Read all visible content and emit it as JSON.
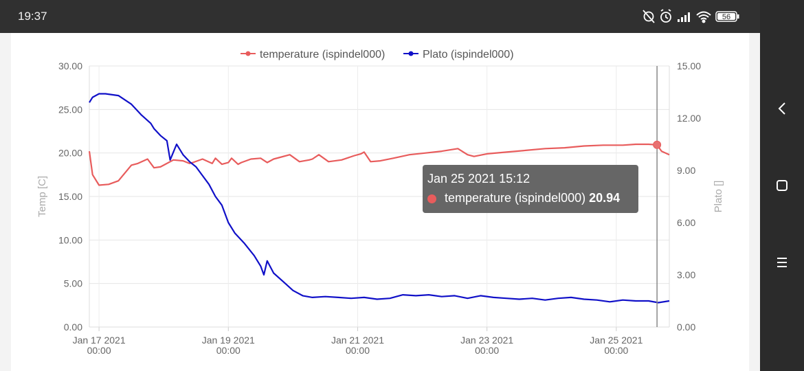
{
  "status_bar": {
    "time": "19:37",
    "battery_level": "56",
    "icons": [
      "alarm-off-icon",
      "alarm-clock-icon",
      "signal-icon",
      "wifi-icon",
      "battery-icon"
    ]
  },
  "nav_bar": {
    "icons": [
      "back-chevron-icon",
      "home-square-icon",
      "menu-lines-icon"
    ]
  },
  "chart_data": {
    "type": "line",
    "title": "",
    "x_tick_labels": [
      [
        "Jan 17 2021",
        "00:00"
      ],
      [
        "Jan 19 2021",
        "00:00"
      ],
      [
        "Jan 21 2021",
        "00:00"
      ],
      [
        "Jan 23 2021",
        "00:00"
      ],
      [
        "Jan 25 2021",
        "00:00"
      ]
    ],
    "x_range_days": [
      16.85,
      25.82
    ],
    "y_left": {
      "label": "Temp [C]",
      "range": [
        0,
        30
      ],
      "ticks": [
        "0.00",
        "5.00",
        "10.00",
        "15.00",
        "20.00",
        "25.00",
        "30.00"
      ]
    },
    "y_right": {
      "label": "Plato []",
      "range": [
        0,
        15
      ],
      "ticks": [
        "0.00",
        "3.00",
        "6.00",
        "9.00",
        "12.00",
        "15.00"
      ]
    },
    "legend_position": "top-center",
    "grid": true,
    "series": [
      {
        "name": "temperature  (ispindel000)",
        "axis": "left",
        "color": "#e85c5c",
        "x_day": [
          16.85,
          16.9,
          17.0,
          17.15,
          17.3,
          17.5,
          17.6,
          17.75,
          17.85,
          17.95,
          18.0,
          18.15,
          18.3,
          18.4,
          18.45,
          18.6,
          18.75,
          18.8,
          18.9,
          19.0,
          19.05,
          19.15,
          19.2,
          19.35,
          19.5,
          19.6,
          19.7,
          19.8,
          19.95,
          20.1,
          20.25,
          20.3,
          20.4,
          20.55,
          20.75,
          20.95,
          21.05,
          21.1,
          21.2,
          21.35,
          21.55,
          21.8,
          22.05,
          22.3,
          22.55,
          22.7,
          22.8,
          23.0,
          23.3,
          23.6,
          23.9,
          24.2,
          24.5,
          24.8,
          25.1,
          25.3,
          25.5,
          25.63,
          25.7,
          25.82
        ],
        "values": [
          20.2,
          17.5,
          16.3,
          16.4,
          16.8,
          18.6,
          18.8,
          19.3,
          18.3,
          18.4,
          18.6,
          19.2,
          19.1,
          18.8,
          18.9,
          19.3,
          18.8,
          19.4,
          18.7,
          18.9,
          19.4,
          18.7,
          18.9,
          19.3,
          19.4,
          18.9,
          19.3,
          19.5,
          19.8,
          19.0,
          19.2,
          19.3,
          19.8,
          19.0,
          19.2,
          19.7,
          19.9,
          20.1,
          19.0,
          19.1,
          19.4,
          19.8,
          20.0,
          20.2,
          20.5,
          19.8,
          19.6,
          19.9,
          20.1,
          20.3,
          20.5,
          20.6,
          20.8,
          20.9,
          20.9,
          21.0,
          21.0,
          20.94,
          20.2,
          19.8
        ]
      },
      {
        "name": "Plato  (ispindel000)",
        "axis": "right",
        "color": "#1010c8",
        "x_day": [
          16.85,
          16.9,
          17.0,
          17.1,
          17.3,
          17.5,
          17.65,
          17.8,
          17.85,
          17.95,
          18.05,
          18.1,
          18.2,
          18.25,
          18.3,
          18.4,
          18.5,
          18.6,
          18.7,
          18.8,
          18.9,
          19.0,
          19.1,
          19.25,
          19.4,
          19.5,
          19.55,
          19.6,
          19.7,
          19.85,
          20.0,
          20.15,
          20.3,
          20.5,
          20.7,
          20.9,
          21.1,
          21.3,
          21.5,
          21.7,
          21.9,
          22.1,
          22.3,
          22.5,
          22.7,
          22.9,
          23.1,
          23.3,
          23.5,
          23.7,
          23.9,
          24.1,
          24.3,
          24.5,
          24.7,
          24.9,
          25.1,
          25.3,
          25.5,
          25.65,
          25.82
        ],
        "values": [
          12.9,
          13.2,
          13.4,
          13.4,
          13.3,
          12.8,
          12.2,
          11.7,
          11.4,
          11.0,
          10.7,
          9.6,
          10.5,
          10.2,
          9.9,
          9.5,
          9.2,
          8.7,
          8.2,
          7.5,
          7.0,
          6.0,
          5.4,
          4.8,
          4.1,
          3.5,
          3.0,
          3.8,
          3.1,
          2.6,
          2.1,
          1.8,
          1.7,
          1.75,
          1.7,
          1.65,
          1.7,
          1.6,
          1.65,
          1.85,
          1.8,
          1.85,
          1.75,
          1.8,
          1.65,
          1.8,
          1.7,
          1.65,
          1.6,
          1.65,
          1.55,
          1.65,
          1.7,
          1.6,
          1.55,
          1.45,
          1.55,
          1.5,
          1.5,
          1.4,
          1.5
        ]
      }
    ],
    "hover": {
      "x_day": 25.63,
      "label": "Jan 25 2021 15:12",
      "series_name": "temperature (ispindel000)",
      "value": "20.94"
    }
  }
}
